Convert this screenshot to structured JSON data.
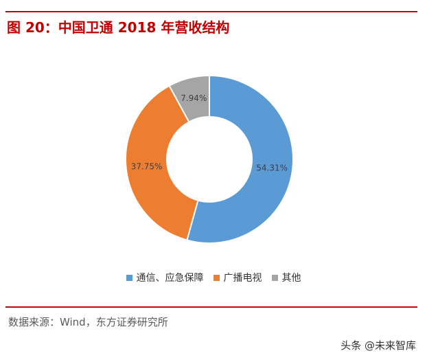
{
  "header": {
    "title": "图 20：中国卫通 2018 年营收结构"
  },
  "chart_data": {
    "type": "pie",
    "variant": "donut",
    "title": "",
    "series": [
      {
        "categories": [
          "通信、应急保障",
          "广播电视",
          "其他"
        ],
        "values": [
          54.31,
          37.75,
          7.94
        ],
        "labels": [
          "54.31%",
          "37.75%",
          "7.94%"
        ],
        "colors": [
          "#5b9bd5",
          "#ed7d31",
          "#a5a5a5"
        ]
      }
    ],
    "legend_position": "bottom",
    "grid": false
  },
  "footer": {
    "source": "数据来源：Wind，东方证券研究所",
    "watermark": "头条 @未来智库"
  },
  "colors": {
    "accent": "#c00000"
  }
}
